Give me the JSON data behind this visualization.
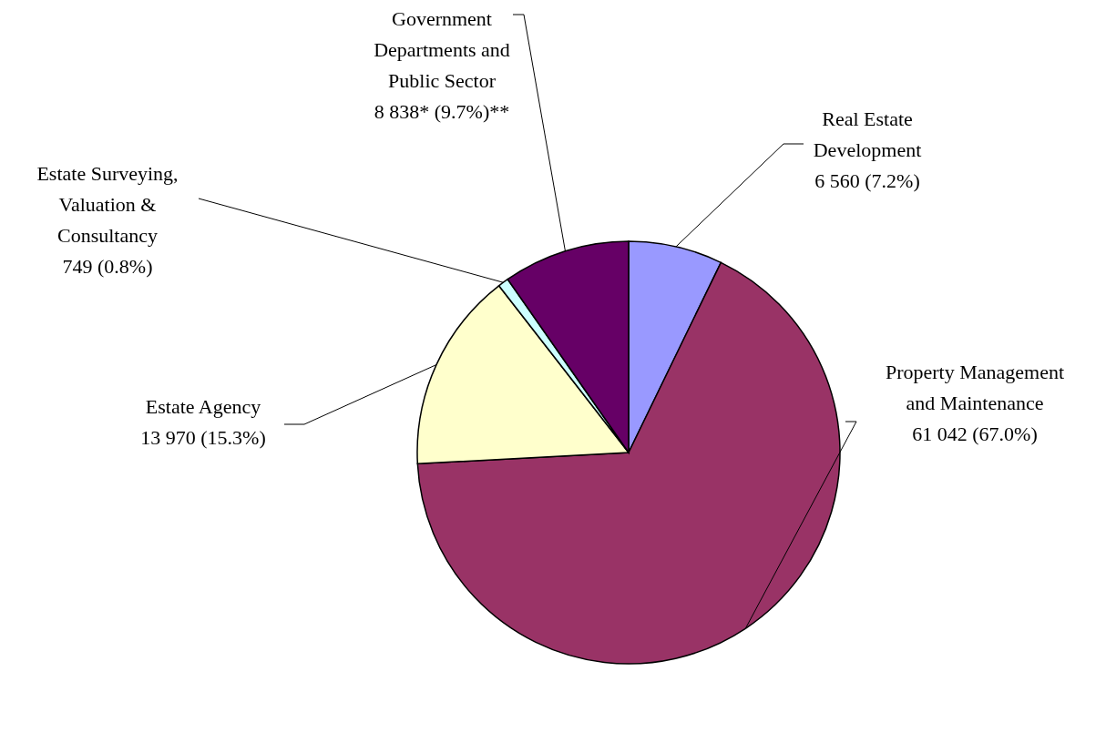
{
  "chart_data": {
    "type": "pie",
    "categories": [
      "Real Estate Development",
      "Property Management and Maintenance",
      "Estate Agency",
      "Estate Surveying, Valuation & Consultancy",
      "Government Departments and Public Sector"
    ],
    "values": [
      6560,
      61042,
      13970,
      749,
      8838
    ],
    "value_labels": [
      "6 560 (7.2%)",
      "61 042 (67.0%)",
      "13 970 (15.3%)",
      "749 (0.8%)",
      "8 838* (9.7%)**"
    ],
    "colors": [
      "#9999ff",
      "#993366",
      "#ffffcc",
      "#ccffff",
      "#660066"
    ]
  }
}
